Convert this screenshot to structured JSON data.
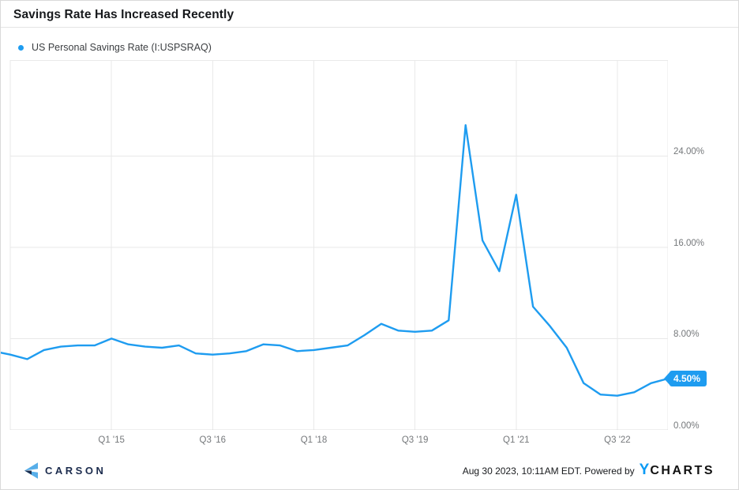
{
  "header": {
    "title": "Savings Rate Has Increased Recently"
  },
  "legend": {
    "series_label": "US Personal Savings Rate (I:USPSRAQ)"
  },
  "chart_data": {
    "type": "line",
    "title": "Savings Rate Has Increased Recently",
    "x": [
      "Q3 '13",
      "Q4 '13",
      "Q1 '14",
      "Q2 '14",
      "Q3 '14",
      "Q4 '14",
      "Q1 '15",
      "Q2 '15",
      "Q3 '15",
      "Q4 '15",
      "Q1 '16",
      "Q2 '16",
      "Q3 '16",
      "Q4 '16",
      "Q1 '17",
      "Q2 '17",
      "Q3 '17",
      "Q4 '17",
      "Q1 '18",
      "Q2 '18",
      "Q3 '18",
      "Q4 '18",
      "Q1 '19",
      "Q2 '19",
      "Q3 '19",
      "Q4 '19",
      "Q1 '20",
      "Q2 '20",
      "Q3 '20",
      "Q4 '20",
      "Q1 '21",
      "Q2 '21",
      "Q3 '21",
      "Q4 '21",
      "Q1 '22",
      "Q2 '22",
      "Q3 '22",
      "Q4 '22",
      "Q1 '23",
      "Q2 '23"
    ],
    "series": [
      {
        "name": "US Personal Savings Rate (I:USPSRAQ)",
        "values": [
          6.6,
          6.2,
          7.0,
          7.3,
          7.4,
          7.4,
          8.0,
          7.5,
          7.3,
          7.2,
          7.4,
          6.7,
          6.6,
          6.7,
          6.9,
          7.5,
          7.4,
          6.9,
          7.0,
          7.2,
          7.4,
          8.3,
          9.3,
          8.7,
          8.6,
          8.7,
          9.6,
          26.7,
          16.6,
          13.9,
          20.6,
          10.8,
          9.1,
          7.2,
          4.1,
          3.1,
          3.0,
          3.3,
          4.1,
          4.5
        ]
      }
    ],
    "lead_in_value": 6.9,
    "ylim": [
      0,
      32.4
    ],
    "y_ticks": [
      {
        "value": 0,
        "label": "0.00%"
      },
      {
        "value": 8,
        "label": "8.00%"
      },
      {
        "value": 16,
        "label": "16.00%"
      },
      {
        "value": 24,
        "label": "24.00%"
      }
    ],
    "x_ticks": [
      {
        "index": 6,
        "label": "Q1 '15"
      },
      {
        "index": 12,
        "label": "Q3 '16"
      },
      {
        "index": 18,
        "label": "Q1 '18"
      },
      {
        "index": 24,
        "label": "Q3 '19"
      },
      {
        "index": 30,
        "label": "Q1 '21"
      },
      {
        "index": 36,
        "label": "Q3 '22"
      }
    ],
    "grid": true,
    "legend_position": "top-left",
    "line_color": "#1e9cf0",
    "grid_color": "#e9e9e9",
    "axis_color": "#dcdcdc",
    "last_value_label": "4.50%"
  },
  "footer": {
    "brand": "CARSON",
    "timestamp": "Aug 30 2023, 10:11AM EDT. Powered by",
    "ycharts_y": "Y",
    "ycharts_rest": "CHARTS"
  }
}
